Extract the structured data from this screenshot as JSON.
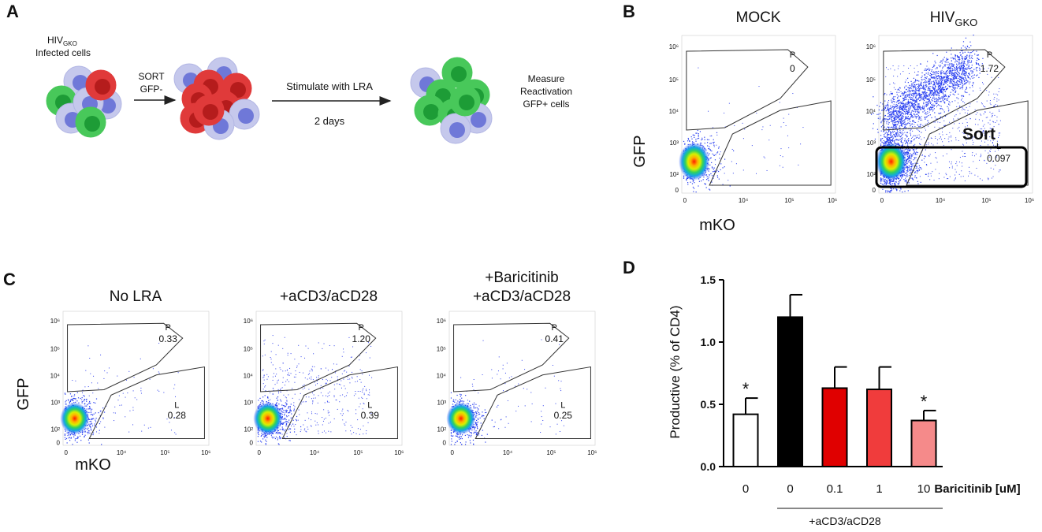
{
  "panel_labels": [
    "A",
    "B",
    "C",
    "D"
  ],
  "schematic": {
    "infected_title": "HIV",
    "infected_sub": "GKO",
    "infected_caption": "Infected cells",
    "sort_lines": [
      "SORT",
      "GFP-"
    ],
    "stimulate": "Stimulate with LRA",
    "duration": "2 days",
    "measure_lines": [
      "Measure",
      "Reactivation",
      "GFP+ cells"
    ]
  },
  "flow_ticks": {
    "y": [
      "0",
      "10²",
      "10³",
      "10⁴",
      "10⁵",
      "10⁶"
    ],
    "x": [
      "0",
      "10⁴",
      "10⁵",
      "10⁶"
    ]
  },
  "flow_b": {
    "y_label": "GFP",
    "x_label": "mKO",
    "plots": [
      {
        "title": "MOCK",
        "gates": [
          {
            "name": "P",
            "value": "0"
          }
        ]
      },
      {
        "title": "HIV",
        "title_sub": "GKO",
        "gates": [
          {
            "name": "P",
            "value": "1.72"
          },
          {
            "name": "L",
            "value": "0.097"
          }
        ],
        "annotation": "Sort"
      }
    ]
  },
  "flow_c": {
    "y_label": "GFP",
    "x_label": "mKO",
    "plots": [
      {
        "title_lines": [
          "No LRA"
        ],
        "gates": [
          {
            "name": "P",
            "value": "0.33"
          },
          {
            "name": "L",
            "value": "0.28"
          }
        ]
      },
      {
        "title_lines": [
          "+aCD3/aCD28"
        ],
        "gates": [
          {
            "name": "P",
            "value": "1.20"
          },
          {
            "name": "L",
            "value": "0.39"
          }
        ]
      },
      {
        "title_lines": [
          "+Baricitinib",
          "+aCD3/aCD28"
        ],
        "gates": [
          {
            "name": "P",
            "value": "0.41"
          },
          {
            "name": "L",
            "value": "0.25"
          }
        ]
      }
    ]
  },
  "chart_data": {
    "type": "bar",
    "y_label": "Productive (% of CD4)",
    "x_label": "Baricitinib [uM]",
    "group_label": "+aCD3/aCD28",
    "categories": [
      "0",
      "0",
      "0.1",
      "1",
      "10"
    ],
    "values": [
      0.42,
      1.2,
      0.63,
      0.62,
      0.37
    ],
    "errors": [
      0.13,
      0.18,
      0.17,
      0.18,
      0.08
    ],
    "colors": [
      "#ffffff",
      "#000000",
      "#e00000",
      "#f03c3c",
      "#f58a8a"
    ],
    "significance": [
      "*",
      null,
      null,
      null,
      "*"
    ],
    "ylim": [
      0,
      1.5
    ],
    "yticks": [
      {
        "value": 0,
        "label": "0.0"
      },
      0.5,
      {
        "value": 1,
        "label": "1.0"
      },
      1.5
    ]
  }
}
